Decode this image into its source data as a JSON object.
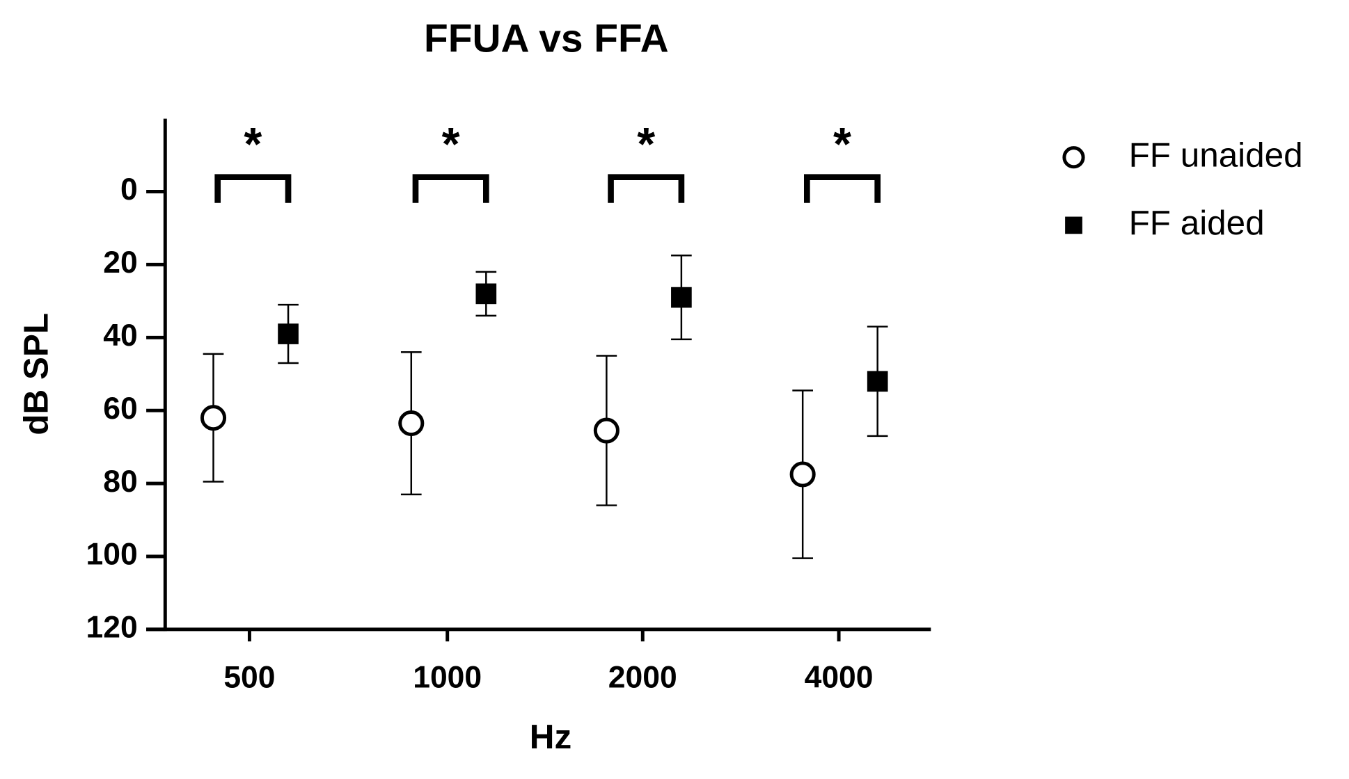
{
  "chart_data": {
    "type": "errorbar",
    "title": "FFUA vs FFA",
    "x_label": "Hz",
    "y_label": "dB SPL",
    "categories": [
      "500",
      "1000",
      "2000",
      "4000"
    ],
    "series": [
      {
        "name": "FF unaided",
        "color": "#000000",
        "marker": "open-circle",
        "values": [
          62,
          63.5,
          65.5,
          77.5
        ],
        "errors": [
          17.5,
          19.5,
          20.5,
          23
        ]
      },
      {
        "name": "FF aided",
        "color": "#000000",
        "marker": "filled-square",
        "values": [
          39,
          28,
          29,
          52
        ],
        "errors": [
          8,
          6,
          11.5,
          15
        ]
      }
    ],
    "ylim": [
      -20,
      120
    ],
    "y_inverted": true,
    "yticks": [
      0,
      20,
      40,
      60,
      80,
      100,
      120
    ],
    "annotations": [
      "*",
      "*",
      "*",
      "*"
    ],
    "legend": "right",
    "grid": false
  }
}
